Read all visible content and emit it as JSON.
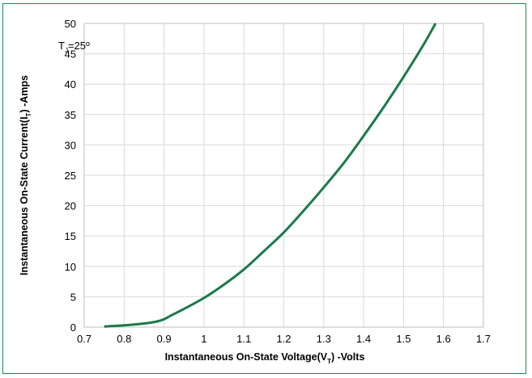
{
  "chart_data": {
    "type": "line",
    "xlabel_main": "Instantaneous On-State Voltage(V",
    "xlabel_sub": "T",
    "xlabel_tail": ") -Volts",
    "ylabel_main": "Instantaneous On-State Current(I",
    "ylabel_sub": "T",
    "ylabel_tail": ") -Amps",
    "annotation_main": "T",
    "annotation_sub": "J",
    "annotation_tail": "=25º",
    "xlim": [
      0.7,
      1.7
    ],
    "ylim": [
      0,
      50
    ],
    "x_ticks": [
      "0.7",
      "0.8",
      "0.9",
      "1",
      "1.1",
      "1.2",
      "1.3",
      "1.4",
      "1.5",
      "1.6",
      "1.7"
    ],
    "y_ticks": [
      "0",
      "5",
      "10",
      "15",
      "20",
      "25",
      "30",
      "35",
      "40",
      "45",
      "50"
    ],
    "grid": true,
    "line_color": "#1a7a4a",
    "series": [
      {
        "x": [
          0.75,
          0.8,
          0.85,
          0.88,
          0.9,
          0.92,
          0.95,
          1.0,
          1.05,
          1.1,
          1.15,
          1.2,
          1.25,
          1.3,
          1.35,
          1.4,
          1.45,
          1.5,
          1.55,
          1.58
        ],
        "y": [
          0.1,
          0.3,
          0.6,
          0.9,
          1.3,
          2.0,
          3.0,
          4.8,
          7.0,
          9.5,
          12.5,
          15.6,
          19.2,
          23.0,
          27.0,
          31.5,
          36.2,
          41.2,
          46.5,
          50.0
        ]
      }
    ]
  }
}
